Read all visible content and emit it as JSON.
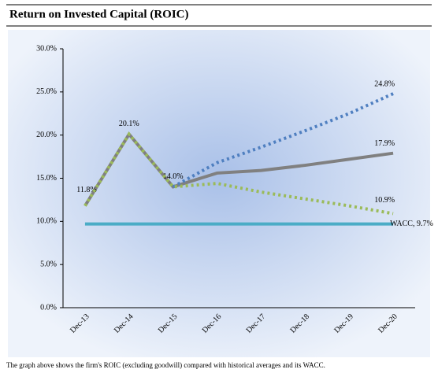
{
  "chart_data": {
    "type": "line",
    "title": "Return on Invested Capital (ROIC)",
    "footnote": "The graph above shows the firm's ROIC (excluding goodwill) compared with historical averages and its WACC.",
    "categories": [
      "Dec-13",
      "Dec-14",
      "Dec-15",
      "Dec-16",
      "Dec-17",
      "Dec-18",
      "Dec-19",
      "Dec-20"
    ],
    "ylim": [
      0,
      30
    ],
    "yticks": [
      {
        "value": 0,
        "label": "0.0%"
      },
      {
        "value": 5,
        "label": "5.0%"
      },
      {
        "value": 10,
        "label": "10.0%"
      },
      {
        "value": 15,
        "label": "15.0%"
      },
      {
        "value": 20,
        "label": "20.0%"
      },
      {
        "value": 25,
        "label": "25.0%"
      },
      {
        "value": 30,
        "label": "30.0%"
      }
    ],
    "series": [
      {
        "color": "#808080",
        "dash": "solid",
        "values": [
          11.8,
          20.1,
          14.0,
          15.6,
          15.9,
          16.5,
          17.2,
          17.9
        ],
        "value_labels": [
          "11.8%",
          "20.1%",
          "14.0%",
          null,
          null,
          null,
          null,
          "17.9%"
        ]
      },
      {
        "color": "#4f7fc0",
        "dash": "dotted",
        "values": [
          null,
          null,
          14.0,
          16.8,
          18.6,
          20.5,
          22.5,
          24.8
        ],
        "value_labels": [
          null,
          null,
          null,
          null,
          null,
          null,
          null,
          "24.8%"
        ]
      },
      {
        "color": "#9bbb59",
        "dash": "dotted",
        "values": [
          11.8,
          20.1,
          14.0,
          14.4,
          13.4,
          12.6,
          11.8,
          10.9
        ],
        "value_labels": [
          null,
          null,
          null,
          null,
          null,
          null,
          null,
          "10.9%"
        ]
      },
      {
        "color": "#4bacc6",
        "dash": "solid",
        "values": [
          9.7,
          9.7,
          9.7,
          9.7,
          9.7,
          9.7,
          9.7,
          9.7
        ],
        "value_labels": [
          null,
          null,
          null,
          null,
          null,
          null,
          null,
          "WACC, 9.7%"
        ]
      }
    ]
  }
}
